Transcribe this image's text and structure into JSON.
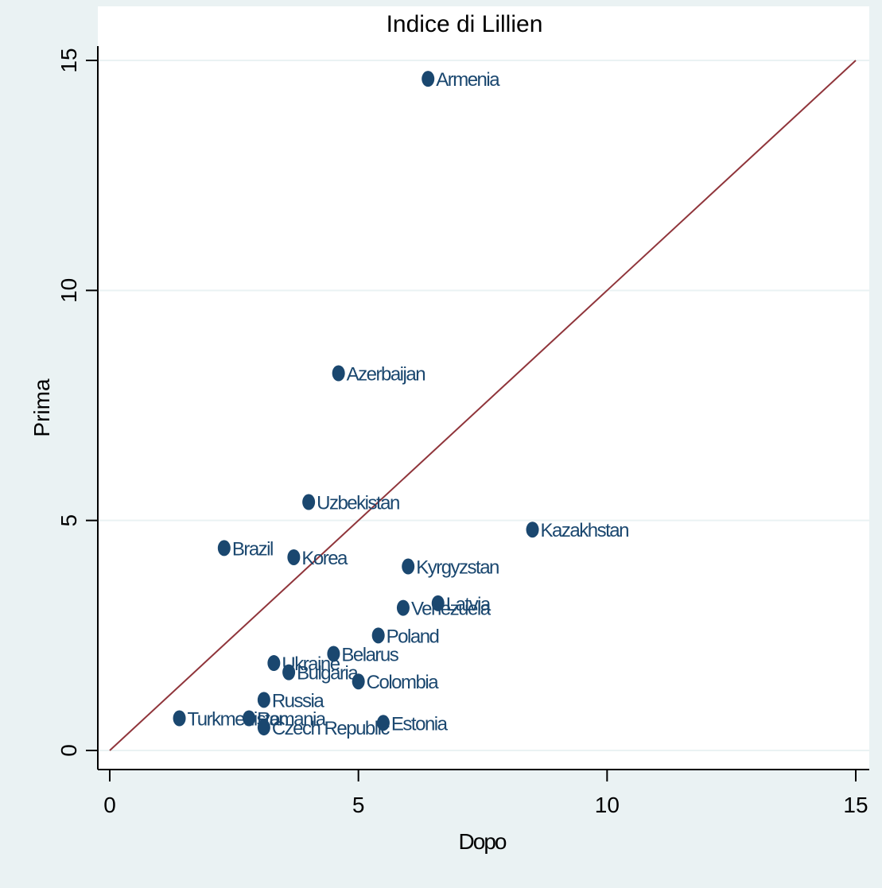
{
  "chart_data": {
    "type": "scatter",
    "title": "Indice di Lillien",
    "xlabel": "Dopo",
    "ylabel": "Prima",
    "xlim": [
      0,
      15
    ],
    "ylim": [
      0,
      15
    ],
    "xticks": [
      "0",
      "5",
      "10",
      "15"
    ],
    "yticks": [
      "0",
      "5",
      "10",
      "15"
    ],
    "grid": "horizontal",
    "reference_line": {
      "from": [
        0,
        0
      ],
      "to": [
        15,
        15
      ],
      "color": "#90353b"
    },
    "marker_color": "#1a476f",
    "points": [
      {
        "label": "Armenia",
        "x": 6.4,
        "y": 14.6
      },
      {
        "label": "Azerbaijan",
        "x": 4.6,
        "y": 8.2
      },
      {
        "label": "Uzbekistan",
        "x": 4.0,
        "y": 5.4
      },
      {
        "label": "Kazakhstan",
        "x": 8.5,
        "y": 4.8
      },
      {
        "label": "Brazil",
        "x": 2.3,
        "y": 4.4
      },
      {
        "label": "Korea",
        "x": 3.7,
        "y": 4.2
      },
      {
        "label": "Kyrgyzstan",
        "x": 6.0,
        "y": 4.0
      },
      {
        "label": "Latvia",
        "x": 6.6,
        "y": 3.2
      },
      {
        "label": "Venezuela",
        "x": 5.9,
        "y": 3.1
      },
      {
        "label": "Poland",
        "x": 5.4,
        "y": 2.5
      },
      {
        "label": "Belarus",
        "x": 4.5,
        "y": 2.1
      },
      {
        "label": "Ukraine",
        "x": 3.3,
        "y": 1.9
      },
      {
        "label": "Bulgaria",
        "x": 3.6,
        "y": 1.7
      },
      {
        "label": "Colombia",
        "x": 5.0,
        "y": 1.5
      },
      {
        "label": "Russia",
        "x": 3.1,
        "y": 1.1
      },
      {
        "label": "Turkmenistan",
        "x": 1.4,
        "y": 0.7
      },
      {
        "label": "Romania",
        "x": 2.8,
        "y": 0.7
      },
      {
        "label": "Estonia",
        "x": 5.5,
        "y": 0.6
      },
      {
        "label": "Czech Republic",
        "x": 3.1,
        "y": 0.5
      }
    ]
  }
}
